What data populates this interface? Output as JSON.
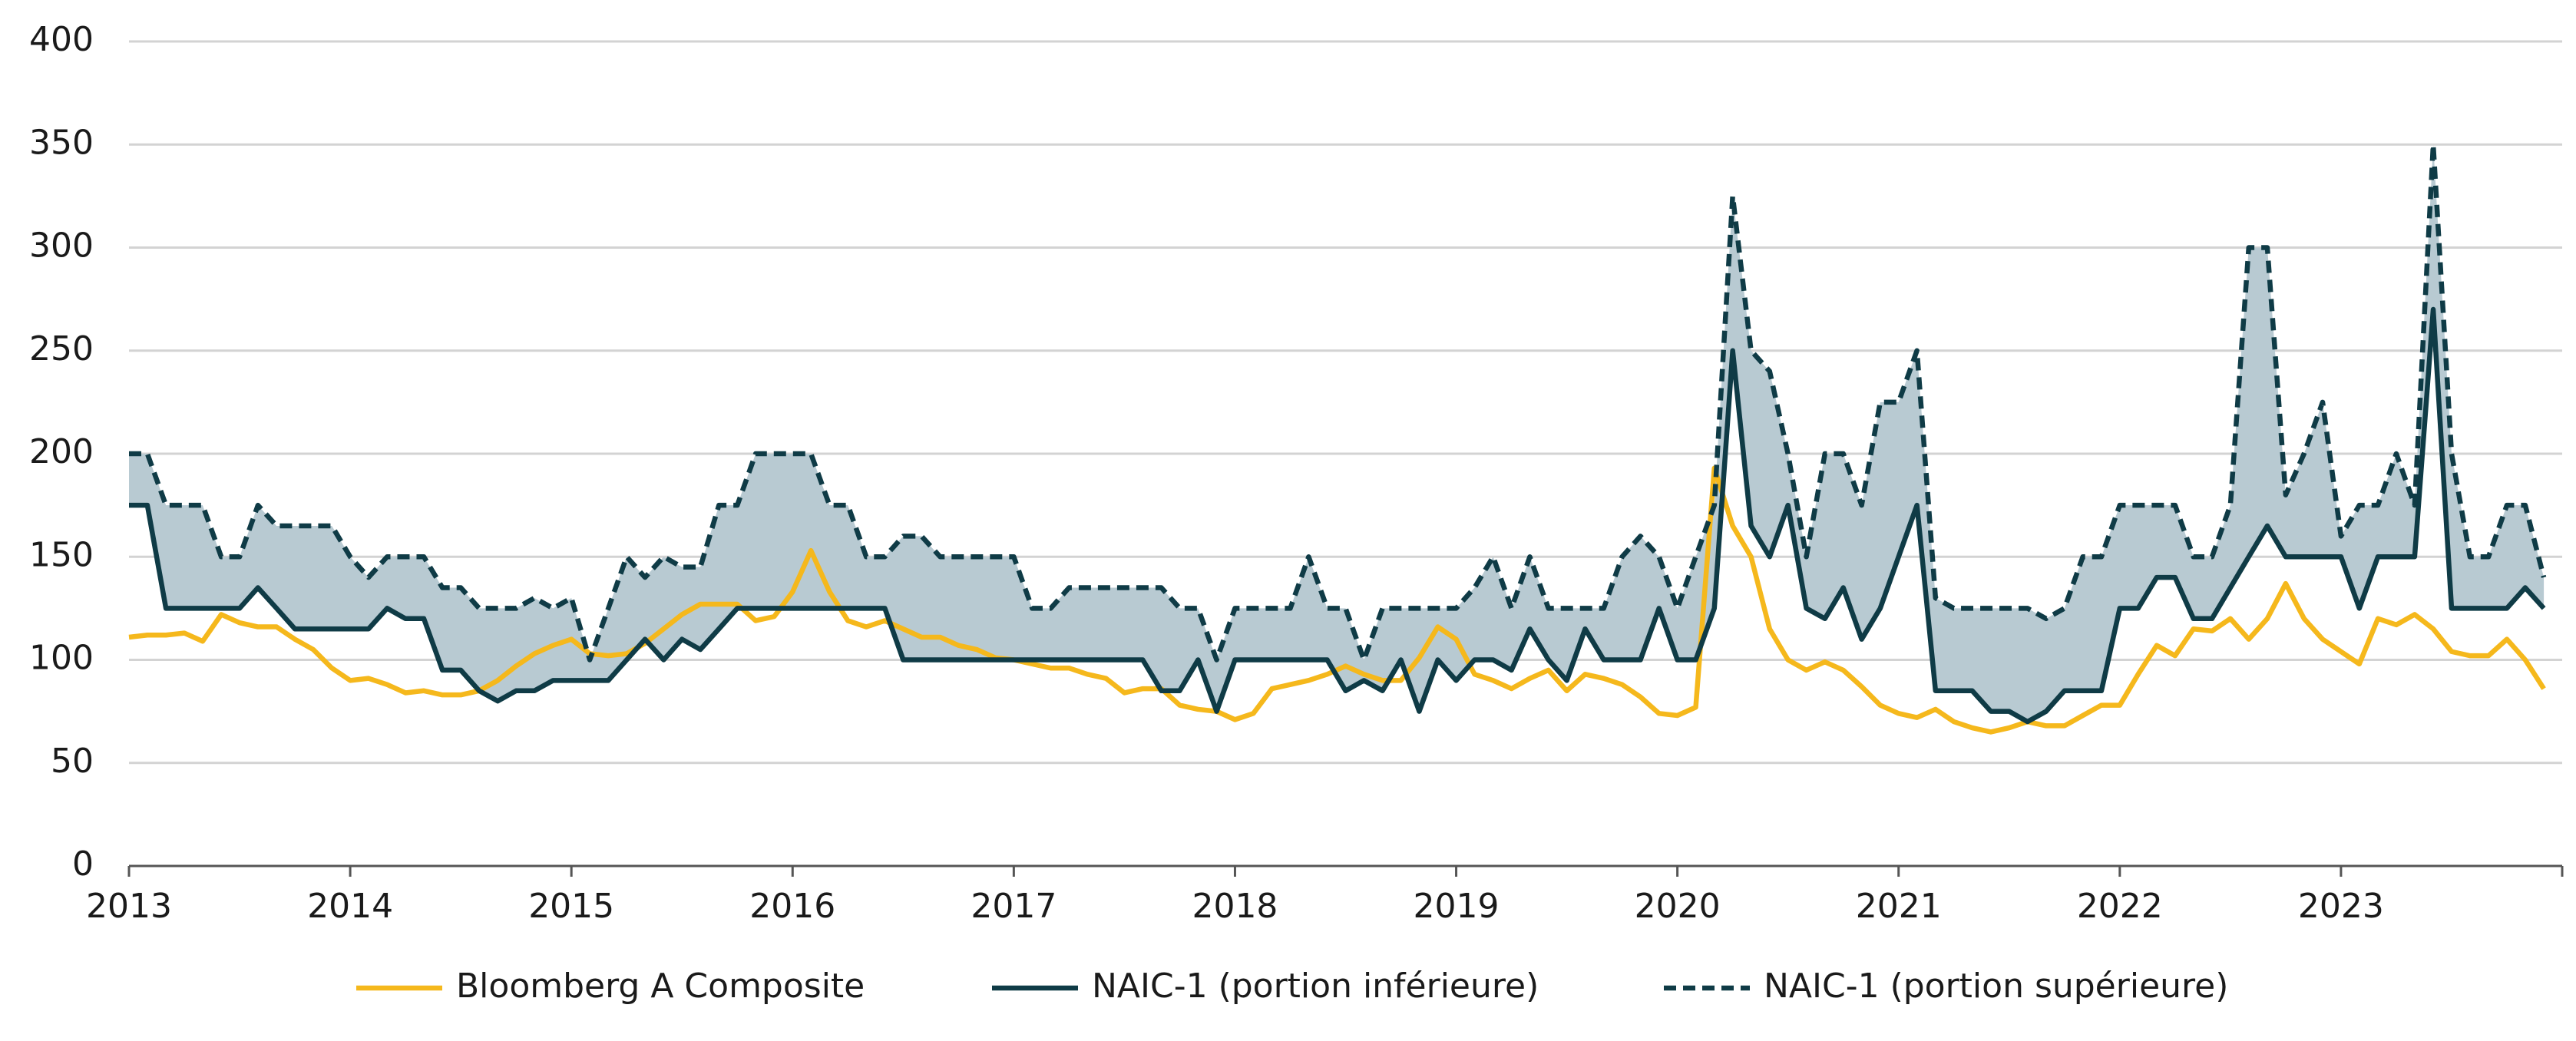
{
  "chart_data": {
    "type": "line",
    "x": [
      2013,
      2013.083,
      2013.167,
      2013.25,
      2013.333,
      2013.417,
      2013.5,
      2013.583,
      2013.667,
      2013.75,
      2013.833,
      2013.917,
      2014,
      2014.083,
      2014.167,
      2014.25,
      2014.333,
      2014.417,
      2014.5,
      2014.583,
      2014.667,
      2014.75,
      2014.833,
      2014.917,
      2015,
      2015.083,
      2015.167,
      2015.25,
      2015.333,
      2015.417,
      2015.5,
      2015.583,
      2015.667,
      2015.75,
      2015.833,
      2015.917,
      2016,
      2016.083,
      2016.167,
      2016.25,
      2016.333,
      2016.417,
      2016.5,
      2016.583,
      2016.667,
      2016.75,
      2016.833,
      2016.917,
      2017,
      2017.083,
      2017.167,
      2017.25,
      2017.333,
      2017.417,
      2017.5,
      2017.583,
      2017.667,
      2017.75,
      2017.833,
      2017.917,
      2018,
      2018.083,
      2018.167,
      2018.25,
      2018.333,
      2018.417,
      2018.5,
      2018.583,
      2018.667,
      2018.75,
      2018.833,
      2018.917,
      2019,
      2019.083,
      2019.167,
      2019.25,
      2019.333,
      2019.417,
      2019.5,
      2019.583,
      2019.667,
      2019.75,
      2019.833,
      2019.917,
      2020,
      2020.083,
      2020.167,
      2020.25,
      2020.333,
      2020.417,
      2020.5,
      2020.583,
      2020.667,
      2020.75,
      2020.833,
      2020.917,
      2021,
      2021.083,
      2021.167,
      2021.25,
      2021.333,
      2021.417,
      2021.5,
      2021.583,
      2021.667,
      2021.75,
      2021.833,
      2021.917,
      2022,
      2022.083,
      2022.167,
      2022.25,
      2022.333,
      2022.417,
      2022.5,
      2022.583,
      2022.667,
      2022.75,
      2022.833,
      2022.917,
      2023,
      2023.083,
      2023.167,
      2023.25,
      2023.333,
      2023.417,
      2023.5,
      2023.583,
      2023.667,
      2023.75,
      2023.833,
      2023.917
    ],
    "series": [
      {
        "name": "Bloomberg A Composite",
        "color": "#f5b81c",
        "dash": false,
        "values": [
          111,
          112,
          112,
          113,
          109,
          122,
          118,
          116,
          116,
          110,
          105,
          96,
          90,
          91,
          88,
          84,
          85,
          83,
          83,
          85,
          90,
          97,
          103,
          107,
          110,
          103,
          102,
          103,
          108,
          115,
          122,
          127,
          127,
          127,
          119,
          121,
          133,
          153,
          133,
          119,
          116,
          119,
          115,
          111,
          111,
          107,
          105,
          101,
          100,
          98,
          96,
          96,
          93,
          91,
          84,
          86,
          86,
          78,
          76,
          75,
          71,
          74,
          86,
          88,
          90,
          93,
          97,
          93,
          90,
          90,
          101,
          116,
          110,
          93,
          90,
          86,
          91,
          95,
          85,
          93,
          91,
          88,
          82,
          74,
          73,
          77,
          193,
          165,
          150,
          115,
          100,
          95,
          99,
          95,
          87,
          78,
          74,
          72,
          76,
          70,
          67,
          65,
          67,
          70,
          68,
          68,
          73,
          78,
          78,
          93,
          107,
          102,
          115,
          114,
          120,
          110,
          120,
          137,
          120,
          110,
          104,
          98,
          120,
          117,
          122,
          115,
          104,
          102,
          102,
          110,
          100,
          86
        ]
      },
      {
        "name": "NAIC-1 (portion inférieure)",
        "color": "#0f3b46",
        "dash": false,
        "values": [
          175,
          175,
          125,
          125,
          125,
          125,
          125,
          135,
          125,
          115,
          115,
          115,
          115,
          115,
          125,
          120,
          120,
          95,
          95,
          85,
          80,
          85,
          85,
          90,
          90,
          90,
          90,
          100,
          110,
          100,
          110,
          105,
          115,
          125,
          125,
          125,
          125,
          125,
          125,
          125,
          125,
          125,
          100,
          100,
          100,
          100,
          100,
          100,
          100,
          100,
          100,
          100,
          100,
          100,
          100,
          100,
          85,
          85,
          100,
          75,
          100,
          100,
          100,
          100,
          100,
          100,
          85,
          90,
          85,
          100,
          75,
          100,
          90,
          100,
          100,
          95,
          115,
          100,
          90,
          115,
          100,
          100,
          100,
          125,
          100,
          100,
          125,
          250,
          165,
          150,
          175,
          125,
          120,
          135,
          110,
          125,
          150,
          175,
          85,
          85,
          85,
          75,
          75,
          70,
          75,
          85,
          85,
          85,
          125,
          125,
          140,
          140,
          120,
          120,
          135,
          150,
          165,
          150,
          150,
          150,
          150,
          125,
          150,
          150,
          150,
          270,
          125,
          125,
          125,
          125,
          135,
          125
        ]
      },
      {
        "name": "NAIC-1 (portion supérieure)",
        "color": "#0f3b46",
        "dash": true,
        "values": [
          200,
          200,
          175,
          175,
          175,
          150,
          150,
          175,
          165,
          165,
          165,
          165,
          150,
          140,
          150,
          150,
          150,
          135,
          135,
          125,
          125,
          125,
          130,
          125,
          130,
          100,
          125,
          150,
          140,
          150,
          145,
          145,
          175,
          175,
          200,
          200,
          200,
          200,
          175,
          175,
          150,
          150,
          160,
          160,
          150,
          150,
          150,
          150,
          150,
          125,
          125,
          135,
          135,
          135,
          135,
          135,
          135,
          125,
          125,
          100,
          125,
          125,
          125,
          125,
          150,
          125,
          125,
          100,
          125,
          125,
          125,
          125,
          125,
          135,
          150,
          125,
          150,
          125,
          125,
          125,
          125,
          150,
          160,
          150,
          125,
          150,
          175,
          325,
          250,
          240,
          200,
          150,
          200,
          200,
          175,
          225,
          225,
          250,
          130,
          125,
          125,
          125,
          125,
          125,
          120,
          125,
          150,
          150,
          175,
          175,
          175,
          175,
          150,
          150,
          175,
          300,
          300,
          180,
          200,
          225,
          160,
          175,
          175,
          200,
          175,
          350,
          200,
          150,
          150,
          175,
          175,
          140
        ]
      }
    ],
    "fill_between": {
      "series": [
        1,
        2
      ],
      "color": "#b8cad2"
    },
    "xlim": [
      2013,
      2024
    ],
    "xticks": [
      2013,
      2014,
      2015,
      2016,
      2017,
      2018,
      2019,
      2020,
      2021,
      2022,
      2023
    ],
    "ylim": [
      0,
      400
    ],
    "yticks": [
      0,
      50,
      100,
      150,
      200,
      250,
      300,
      350,
      400
    ],
    "grid": true,
    "legend": "bottom"
  }
}
